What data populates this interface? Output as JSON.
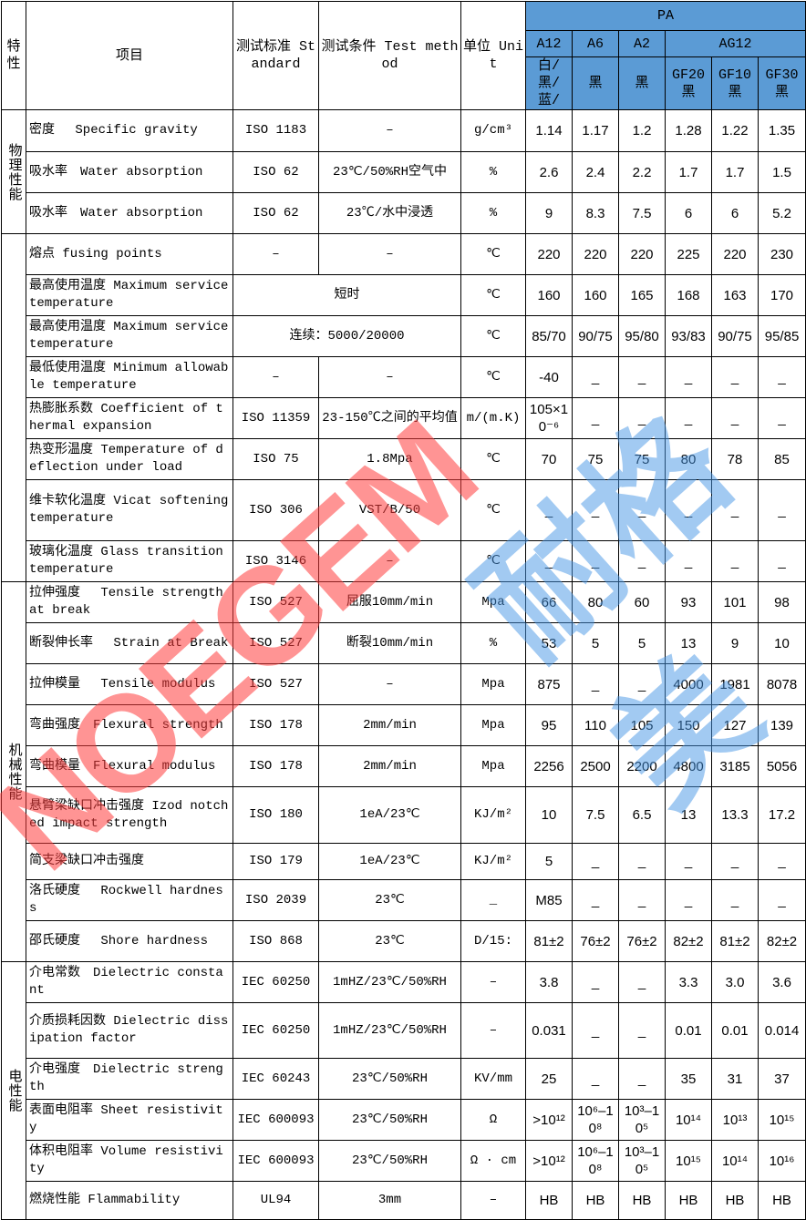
{
  "header": {
    "feature": "特性",
    "item": "项目",
    "standard": "测试标准 Standard",
    "method": "测试条件 Test method",
    "unit": "单位 Unit",
    "material": "PA",
    "grades": [
      "A12",
      "A6",
      "A2",
      "AG12"
    ],
    "variants": [
      "白/黑/蓝/",
      "黑",
      "黑",
      "GF20 黑",
      "GF10 黑",
      "GF30 黑"
    ]
  },
  "groups": [
    "物理性能",
    "",
    "机械性能",
    "电性能"
  ],
  "rows": [
    {
      "item": "密度　 Specific gravity",
      "std": "ISO 1183",
      "cond": "–",
      "unit": "g/cm³",
      "values": [
        "1.14",
        "1.17",
        "1.2",
        "1.28",
        "1.22",
        "1.35"
      ]
    },
    {
      "item": "吸水率　Water absorption",
      "std": "ISO 62",
      "cond": "23℃/50%RH空气中",
      "unit": "%",
      "values": [
        "2.6",
        "2.4",
        "2.2",
        "1.7",
        "1.7",
        "1.5"
      ]
    },
    {
      "item": "吸水率　Water absorption",
      "std": "ISO 62",
      "cond": "23℃/水中浸透",
      "unit": "%",
      "values": [
        "9",
        "8.3",
        "7.5",
        "6",
        "6",
        "5.2"
      ]
    },
    {
      "item": "熔点 fusing points",
      "std": "–",
      "cond": "–",
      "unit": "℃",
      "values": [
        "220",
        "220",
        "220",
        "225",
        "220",
        "230"
      ]
    },
    {
      "item": "最高使用温度 Maximum service temperature",
      "merged": "短时",
      "unit": "℃",
      "values": [
        "160",
        "160",
        "165",
        "168",
        "163",
        "170"
      ]
    },
    {
      "item": "最高使用温度 Maximum service temperature",
      "merged": "连续：5000/20000",
      "unit": "℃",
      "values": [
        "85/70",
        "90/75",
        "95/80",
        "93/83",
        "90/75",
        "95/85"
      ]
    },
    {
      "item": "最低使用温度 Minimum allowable temperature",
      "std": "–",
      "cond": "–",
      "unit": "℃",
      "values": [
        "-40",
        "_",
        "_",
        "_",
        "_",
        "_"
      ]
    },
    {
      "item": "热膨胀系数 Coefficient of thermal expansion",
      "std": "ISO 11359",
      "cond": "23-150℃之间的平均值",
      "unit": "m/(m.K)",
      "values": [
        "105×10⁻⁶",
        "_",
        "_",
        "_",
        "_",
        "_"
      ]
    },
    {
      "item": "热变形温度 Temperature of deflection under load",
      "std": "ISO 75",
      "cond": "1.8Mpa",
      "unit": "℃",
      "values": [
        "70",
        "75",
        "75",
        "80",
        "78",
        "85"
      ]
    },
    {
      "item": "维卡软化温度 Vicat softening temperature",
      "std": "ISO 306",
      "cond": "VST/B/50",
      "unit": "℃",
      "values": [
        "_",
        "_",
        "_",
        "_",
        "_",
        "_"
      ]
    },
    {
      "item": "玻璃化温度 Glass transition temperature",
      "std": "ISO 3146",
      "cond": "–",
      "unit": "℃",
      "values": [
        "_",
        "_",
        "_",
        "_",
        "_",
        "_"
      ]
    },
    {
      "item": "拉伸强度　 Tensile strengthat break",
      "std": "ISO 527",
      "cond": "屈服10mm/min",
      "unit": "Mpa",
      "values": [
        "66",
        "80",
        "60",
        "93",
        "101",
        "98"
      ]
    },
    {
      "item": "断裂伸长率　 Strain at Break",
      "std": "ISO 527",
      "cond": "断裂10mm/min",
      "unit": "%",
      "values": [
        "53",
        "5",
        "5",
        "13",
        "9",
        "10"
      ]
    },
    {
      "item": "拉伸模量　 Tensile modulus",
      "std": "ISO 527",
      "cond": "–",
      "unit": "Mpa",
      "values": [
        "875",
        "_",
        "_",
        "4000",
        "1981",
        "8078"
      ]
    },
    {
      "item": "弯曲强度　Flexural strength",
      "std": "ISO 178",
      "cond": "2mm/min",
      "unit": "Mpa",
      "values": [
        "95",
        "110",
        "105",
        "150",
        "127",
        "139"
      ]
    },
    {
      "item": "弯曲模量　Flexural modulus",
      "std": "ISO 178",
      "cond": "2mm/min",
      "unit": "Mpa",
      "values": [
        "2256",
        "2500",
        "2200",
        "4800",
        "3185",
        "5056"
      ]
    },
    {
      "item": "悬臂梁缺口冲击强度 Izod notched impact strength",
      "std": "ISO 180",
      "cond": "1eA/23℃",
      "unit": "KJ/m²",
      "values": [
        "10",
        "7.5",
        "6.5",
        "13",
        "13.3",
        "17.2"
      ]
    },
    {
      "item": "简支梁缺口冲击强度",
      "std": "ISO 179",
      "cond": "1eA/23℃",
      "unit": "KJ/m²",
      "values": [
        "5",
        "_",
        "_",
        "_",
        "_",
        "_"
      ]
    },
    {
      "item": "洛氏硬度　 Rockwell hardness",
      "std": "ISO 2039",
      "cond": "23℃",
      "unit": "_",
      "values": [
        "M85",
        "_",
        "_",
        "_",
        "_",
        "_"
      ]
    },
    {
      "item": "邵氏硬度　 Shore hardness",
      "std": "ISO 868",
      "cond": "23℃",
      "unit": "D/15:",
      "values": [
        "81±2",
        "76±2",
        "76±2",
        "82±2",
        "81±2",
        "82±2"
      ]
    },
    {
      "item": "介电常数　Dielectric constant",
      "std": "IEC 60250",
      "cond": "1mHZ/23℃/50%RH",
      "unit": "–",
      "values": [
        "3.8",
        "_",
        "_",
        "3.3",
        "3.0",
        "3.6"
      ]
    },
    {
      "item": "介质损耗因数 Dielectric dissipation factor",
      "std": "IEC 60250",
      "cond": "1mHZ/23℃/50%RH",
      "unit": "–",
      "values": [
        "0.031",
        "_",
        "_",
        "0.01",
        "0.01",
        "0.014"
      ]
    },
    {
      "item": "介电强度　Dielectric strength",
      "std": "IEC 60243",
      "cond": "23℃/50%RH",
      "unit": "KV/mm",
      "values": [
        "25",
        "_",
        "_",
        "35",
        "31",
        "37"
      ]
    },
    {
      "item": "表面电阻率 Sheet resistivity",
      "std": "IEC 600093",
      "cond": "23℃/50%RH",
      "unit": "Ω",
      "values": [
        ">10¹²",
        "10⁶–10⁸",
        "10³–10⁵",
        "10¹⁴",
        "10¹³",
        "10¹⁵"
      ]
    },
    {
      "item": "体积电阻率 Volume resistivity",
      "std": "IEC 600093",
      "cond": "23℃/50%RH",
      "unit": "Ω · cm",
      "values": [
        ">10¹²",
        "10⁶–10⁸",
        "10³–10⁵",
        "10¹⁵",
        "10¹⁴",
        "10¹⁶"
      ]
    },
    {
      "item": "燃烧性能 Flammability",
      "std": "UL94",
      "cond": "3mm",
      "unit": "–",
      "values": [
        "HB",
        "HB",
        "HB",
        "HB",
        "HB",
        "HB"
      ]
    }
  ],
  "watermark": {
    "latin": "NOEGEM",
    "chinese": "耐格美"
  },
  "colors": {
    "header_blue": "#5b9bd5",
    "watermark_red": "#ff3c3c",
    "watermark_blue": "#4696e6"
  }
}
